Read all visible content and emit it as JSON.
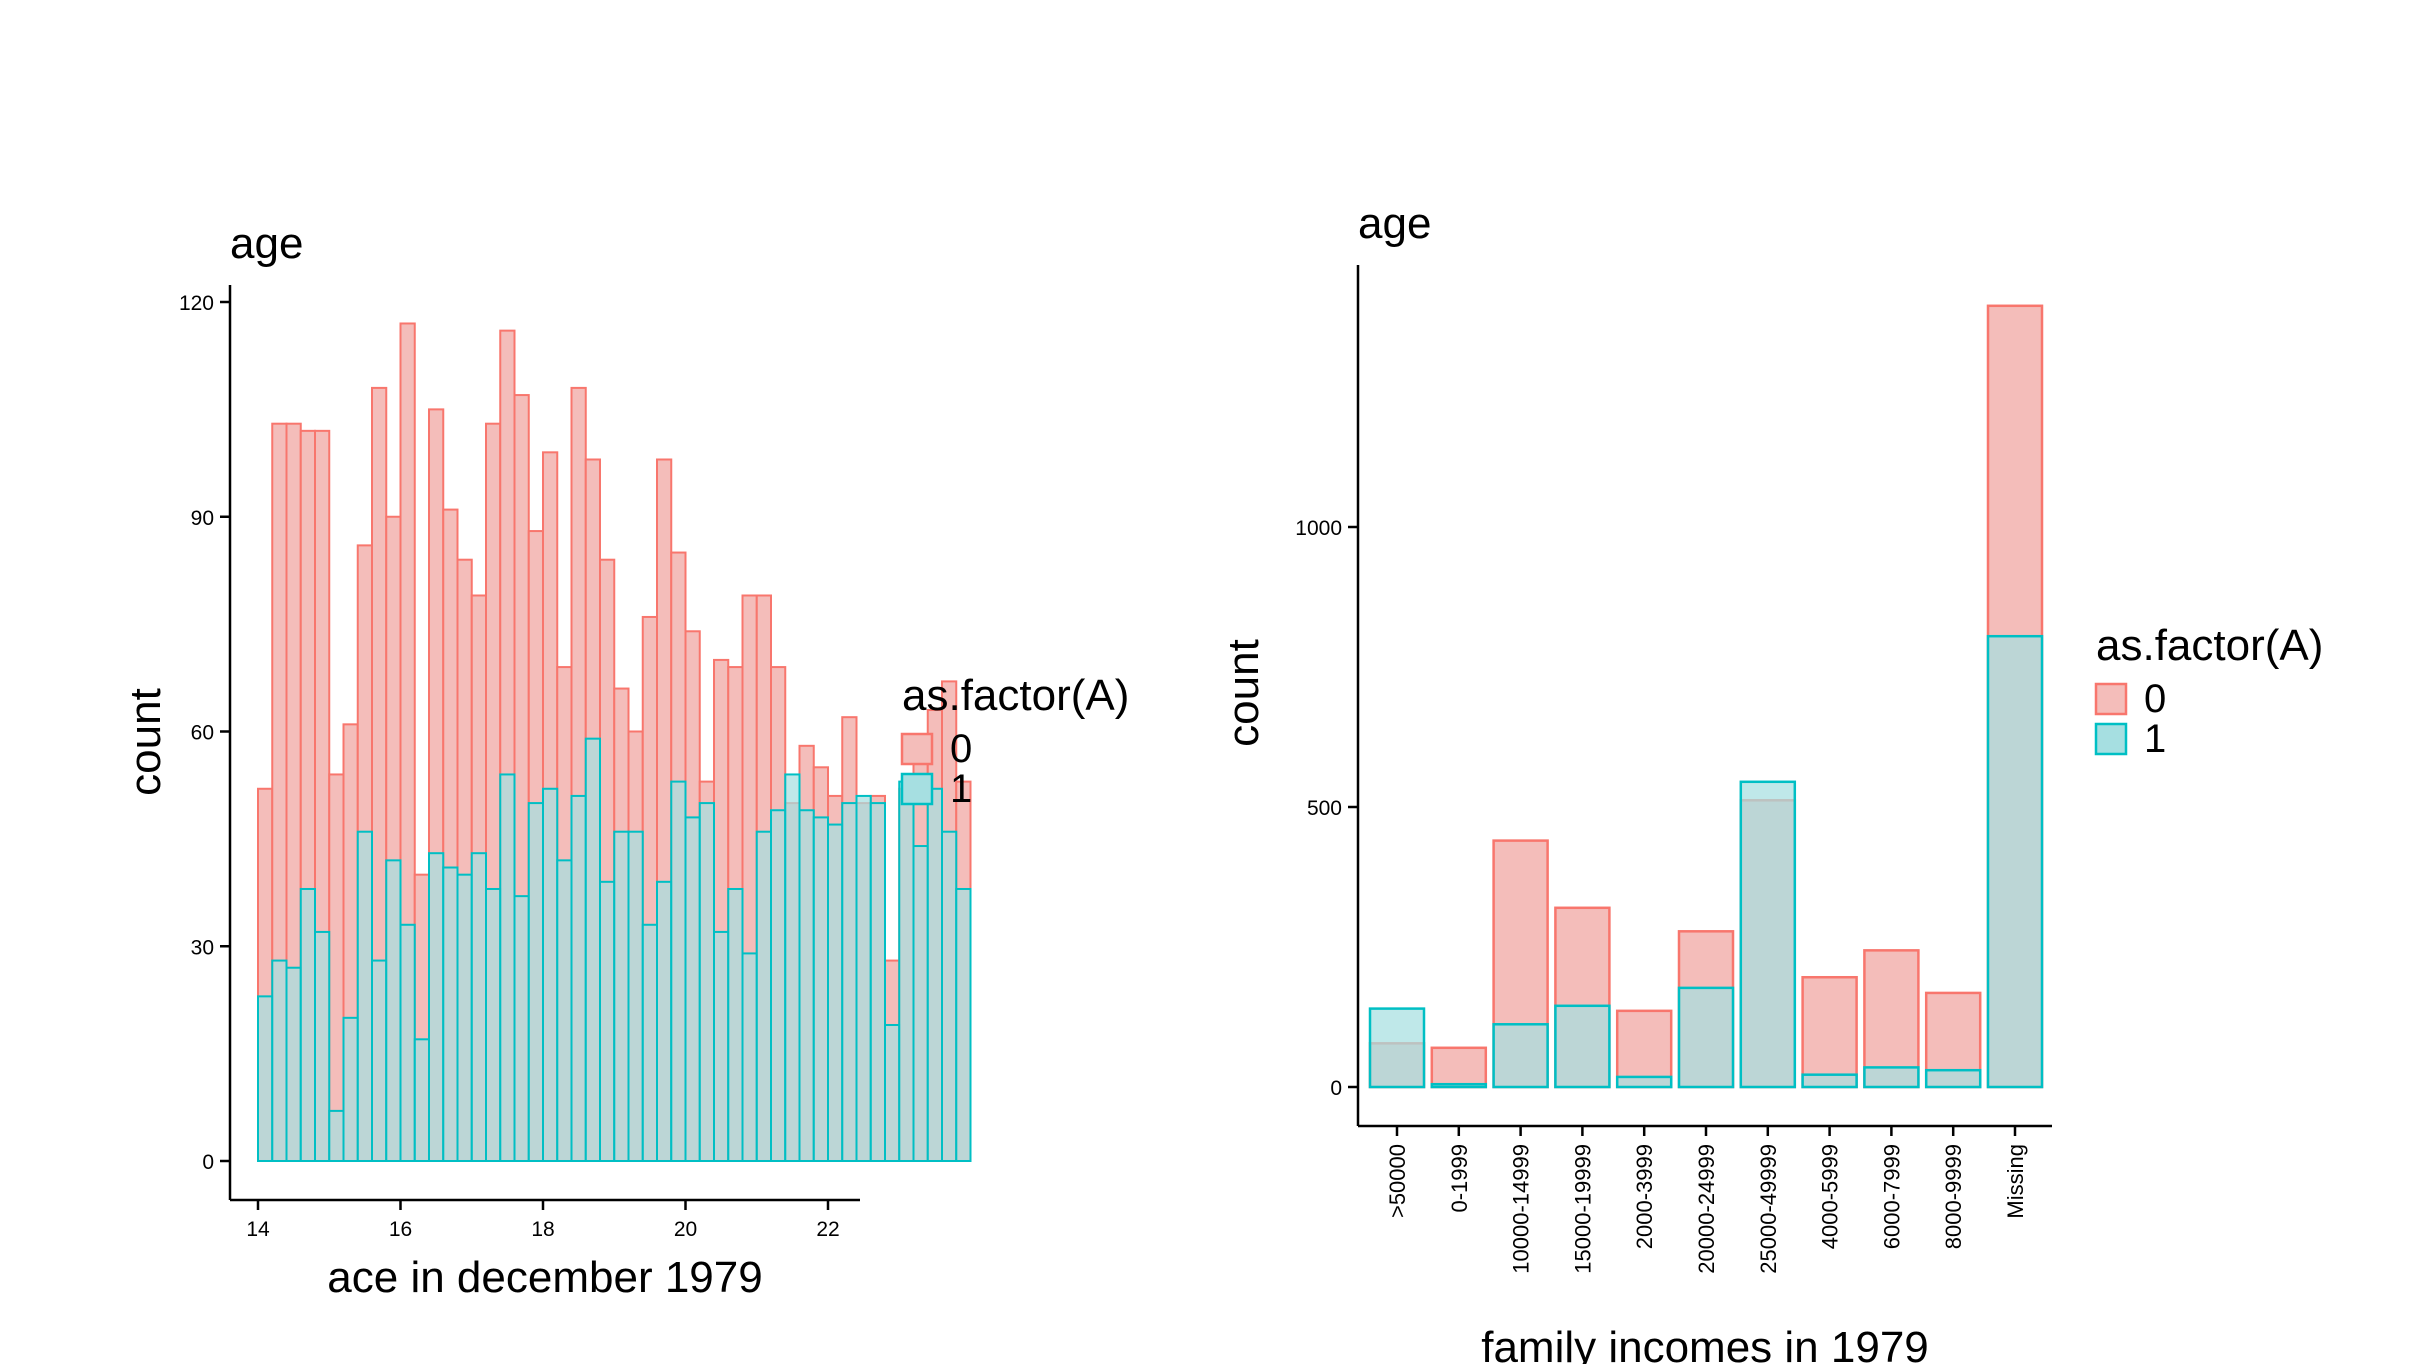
{
  "chart_data": [
    {
      "type": "bar",
      "bar_mode": "overlay",
      "title": "age",
      "xlabel": "ace in december 1979",
      "ylabel": "count",
      "xlim": [
        14,
        22
      ],
      "ylim": [
        0,
        120
      ],
      "x_ticks": [
        14,
        16,
        18,
        20,
        22
      ],
      "y_ticks": [
        0,
        30,
        60,
        90,
        120
      ],
      "bin_start": 14,
      "bin_width": 0.2,
      "legend": {
        "title": "as.factor(A)",
        "position": "right"
      },
      "grid": false,
      "series": [
        {
          "name": "0",
          "color": "#F8766D",
          "fill": "#F4BDBA",
          "values": [
            52,
            103,
            103,
            102,
            102,
            54,
            61,
            86,
            108,
            90,
            117,
            40,
            105,
            91,
            84,
            79,
            103,
            116,
            107,
            88,
            99,
            69,
            108,
            98,
            84,
            66,
            60,
            76,
            98,
            85,
            74,
            53,
            70,
            69,
            79,
            79,
            69,
            50,
            58,
            55,
            51,
            62,
            50,
            51,
            28,
            52,
            59,
            63,
            67,
            53
          ]
        },
        {
          "name": "1",
          "color": "#00BFC4",
          "fill": "#A6DFE1",
          "values": [
            23,
            28,
            27,
            38,
            32,
            7,
            20,
            46,
            28,
            42,
            33,
            17,
            43,
            41,
            40,
            43,
            38,
            54,
            37,
            50,
            52,
            42,
            51,
            59,
            39,
            46,
            46,
            33,
            39,
            53,
            48,
            50,
            32,
            38,
            29,
            46,
            49,
            54,
            49,
            48,
            47,
            50,
            51,
            50,
            19,
            53,
            44,
            52,
            46,
            38
          ]
        }
      ]
    },
    {
      "type": "bar",
      "bar_mode": "overlay",
      "title": "age",
      "xlabel": "family incomes in 1979",
      "ylabel": "count",
      "ylim": [
        0,
        1400
      ],
      "y_ticks": [
        0,
        500,
        1000
      ],
      "categories": [
        ">50000",
        "0-1999",
        "10000-14999",
        "15000-19999",
        "2000-3999",
        "20000-24999",
        "25000-49999",
        "4000-5999",
        "6000-7999",
        "8000-9999",
        "Missing"
      ],
      "legend": {
        "title": "as.factor(A)",
        "position": "right"
      },
      "grid": false,
      "series": [
        {
          "name": "0",
          "color": "#F8766D",
          "fill": "#F4BDBA",
          "values": [
            78,
            70,
            440,
            320,
            136,
            278,
            512,
            196,
            244,
            168,
            1395
          ]
        },
        {
          "name": "1",
          "color": "#00BFC4",
          "fill": "#A6DFE1",
          "values": [
            140,
            5,
            112,
            145,
            18,
            177,
            545,
            22,
            35,
            30,
            805
          ]
        }
      ]
    }
  ]
}
